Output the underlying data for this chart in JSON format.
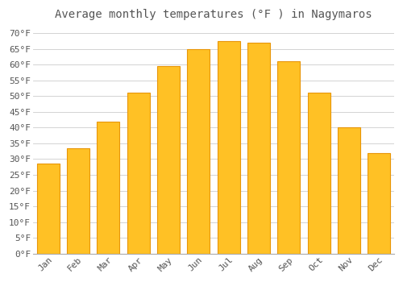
{
  "title": "Average monthly temperatures (°F ) in Nagymaros",
  "months": [
    "Jan",
    "Feb",
    "Mar",
    "Apr",
    "May",
    "Jun",
    "Jul",
    "Aug",
    "Sep",
    "Oct",
    "Nov",
    "Dec"
  ],
  "values": [
    28.5,
    33.5,
    42.0,
    51.0,
    59.5,
    65.0,
    67.5,
    67.0,
    61.0,
    51.0,
    40.0,
    32.0
  ],
  "bar_color": "#FFC125",
  "bar_edge_color": "#E8960A",
  "background_color": "#FFFFFF",
  "plot_bg_color": "#FFFFFF",
  "grid_color": "#CCCCCC",
  "text_color": "#555555",
  "spine_color": "#AAAAAA",
  "ylim": [
    0,
    72
  ],
  "title_fontsize": 10,
  "tick_fontsize": 8
}
